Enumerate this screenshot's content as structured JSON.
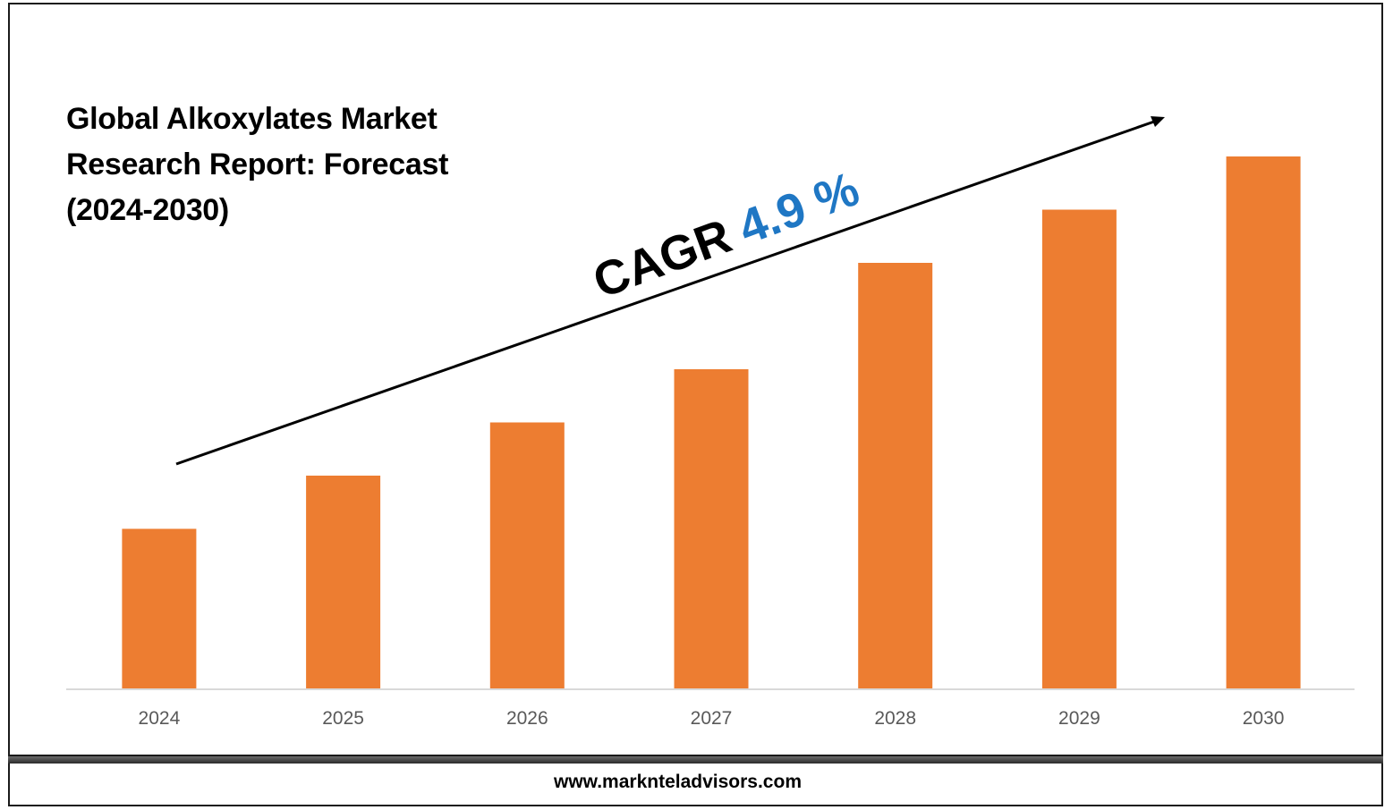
{
  "chart_data": {
    "type": "bar",
    "title": "Global Alkoxylates Market Research Report: Forecast (2024-2030)",
    "title_lines": [
      "Global Alkoxylates Market",
      "Research Report: Forecast",
      "(2024-2030)"
    ],
    "categories": [
      "2024",
      "2025",
      "2026",
      "2027",
      "2028",
      "2029",
      "2030"
    ],
    "values": [
      30,
      40,
      50,
      60,
      80,
      90,
      100
    ],
    "ylim": [
      0,
      100
    ],
    "grid": false,
    "annotations": {
      "cagr_label": "CAGR",
      "cagr_value": "4.9 %"
    }
  },
  "colors": {
    "bar": "#ed7d31",
    "cagr_value": "#1f77c4",
    "axis_line": "#d9d9d9",
    "tick_text": "#595959",
    "arrow": "#000000"
  },
  "footer": {
    "website": "www.marknteladvisors.com"
  }
}
